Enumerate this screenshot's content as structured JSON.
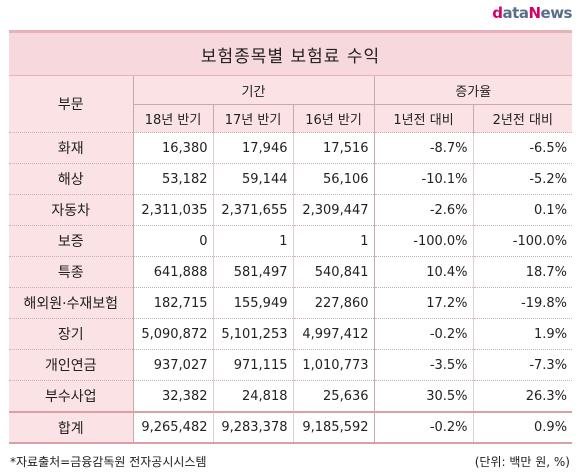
{
  "brand": {
    "d": "d",
    "ata": "ata",
    "n": "N",
    "ews": "ews"
  },
  "title": "보험종목별 보험료 수익",
  "header": {
    "part": "부문",
    "period": "기간",
    "growth": "증가율",
    "periods": [
      "18년 반기",
      "17년 반기",
      "16년 반기"
    ],
    "growth_cols": [
      "1년전 대비",
      "2년전 대비"
    ]
  },
  "rows": [
    {
      "name": "화재",
      "y18": "16,380",
      "y17": "17,946",
      "y16": "17,516",
      "g1": "-8.7%",
      "g2": "-6.5%"
    },
    {
      "name": "해상",
      "y18": "53,182",
      "y17": "59,144",
      "y16": "56,106",
      "g1": "-10.1%",
      "g2": "-5.2%"
    },
    {
      "name": "자동차",
      "y18": "2,311,035",
      "y17": "2,371,655",
      "y16": "2,309,447",
      "g1": "-2.6%",
      "g2": "0.1%"
    },
    {
      "name": "보증",
      "y18": "0",
      "y17": "1",
      "y16": "1",
      "g1": "-100.0%",
      "g2": "-100.0%"
    },
    {
      "name": "특종",
      "y18": "641,888",
      "y17": "581,497",
      "y16": "540,841",
      "g1": "10.4%",
      "g2": "18.7%"
    },
    {
      "name": "해외원·수재보험",
      "y18": "182,715",
      "y17": "155,949",
      "y16": "227,860",
      "g1": "17.2%",
      "g2": "-19.8%"
    },
    {
      "name": "장기",
      "y18": "5,090,872",
      "y17": "5,101,253",
      "y16": "4,997,412",
      "g1": "-0.2%",
      "g2": "1.9%"
    },
    {
      "name": "개인연금",
      "y18": "937,027",
      "y17": "971,115",
      "y16": "1,010,773",
      "g1": "-3.5%",
      "g2": "-7.3%"
    },
    {
      "name": "부수사업",
      "y18": "32,382",
      "y17": "24,818",
      "y16": "25,636",
      "g1": "30.5%",
      "g2": "26.3%"
    }
  ],
  "total": {
    "name": "합계",
    "y18": "9,265,482",
    "y17": "9,283,378",
    "y16": "9,185,592",
    "g1": "-0.2%",
    "g2": "0.9%"
  },
  "footer": {
    "source": "*자료출처=금융감독원 전자공시시스템",
    "unit": "(단위: 백만 원, %)"
  }
}
